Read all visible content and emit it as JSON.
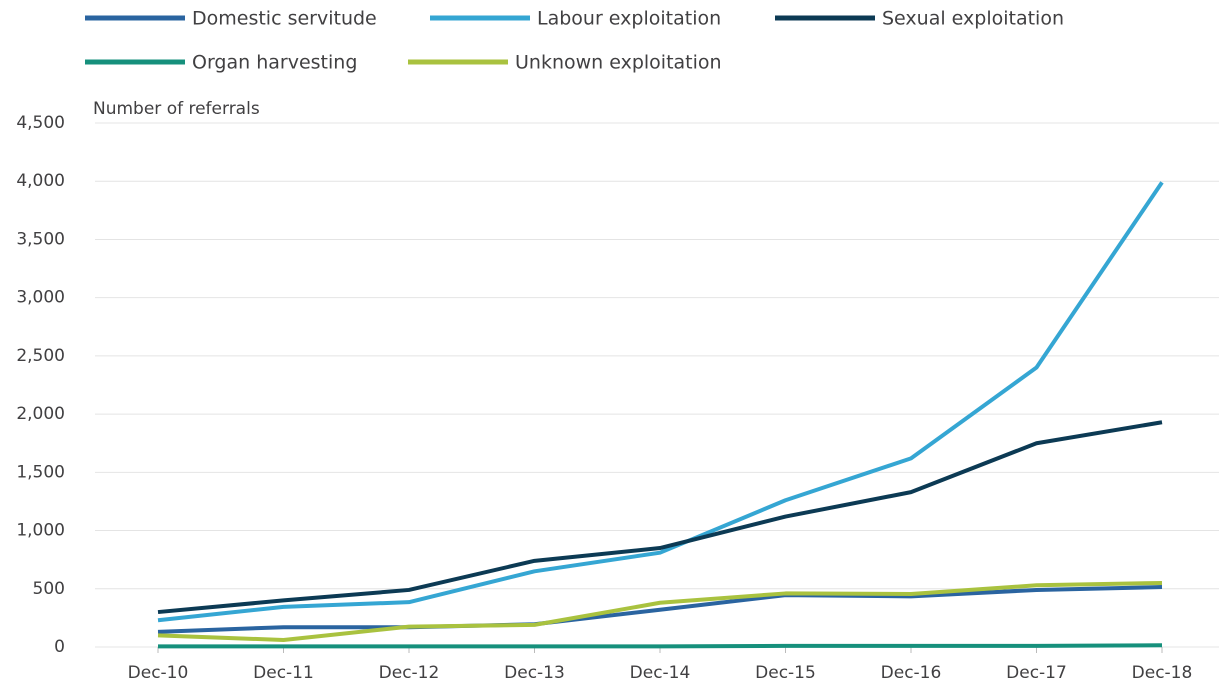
{
  "chart_data": {
    "type": "line",
    "y_label": "Number of referrals",
    "categories": [
      "Dec-10",
      "Dec-11",
      "Dec-12",
      "Dec-13",
      "Dec-14",
      "Dec-15",
      "Dec-16",
      "Dec-17",
      "Dec-18"
    ],
    "series": [
      {
        "name": "Domestic servitude",
        "color": "#2a64a0",
        "values": [
          130,
          170,
          170,
          195,
          320,
          445,
          435,
          490,
          515
        ]
      },
      {
        "name": "Labour exploitation",
        "color": "#35a6d3",
        "values": [
          230,
          345,
          385,
          650,
          810,
          1260,
          1620,
          2400,
          3990
        ]
      },
      {
        "name": "Sexual exploitation",
        "color": "#0c3a54",
        "values": [
          300,
          400,
          490,
          740,
          850,
          1120,
          1330,
          1750,
          1930
        ]
      },
      {
        "name": "Organ harvesting",
        "color": "#16907c",
        "values": [
          5,
          5,
          5,
          5,
          5,
          10,
          10,
          10,
          15
        ]
      },
      {
        "name": "Unknown exploitation",
        "color": "#a9c23f",
        "values": [
          100,
          60,
          175,
          190,
          380,
          460,
          455,
          530,
          550
        ]
      }
    ],
    "ylim": [
      0,
      4500
    ],
    "yticks": [
      0,
      500,
      {
        "value": 1000,
        "label": "1,000"
      },
      {
        "value": 1500,
        "label": "1,500"
      },
      {
        "value": 2000,
        "label": "2,000"
      },
      {
        "value": 2500,
        "label": "2,500"
      },
      {
        "value": 3000,
        "label": "3,000"
      },
      {
        "value": 3500,
        "label": "3,500"
      },
      {
        "value": 4000,
        "label": "4,000"
      },
      {
        "value": 4500,
        "label": "4,500"
      }
    ],
    "grid": true
  }
}
